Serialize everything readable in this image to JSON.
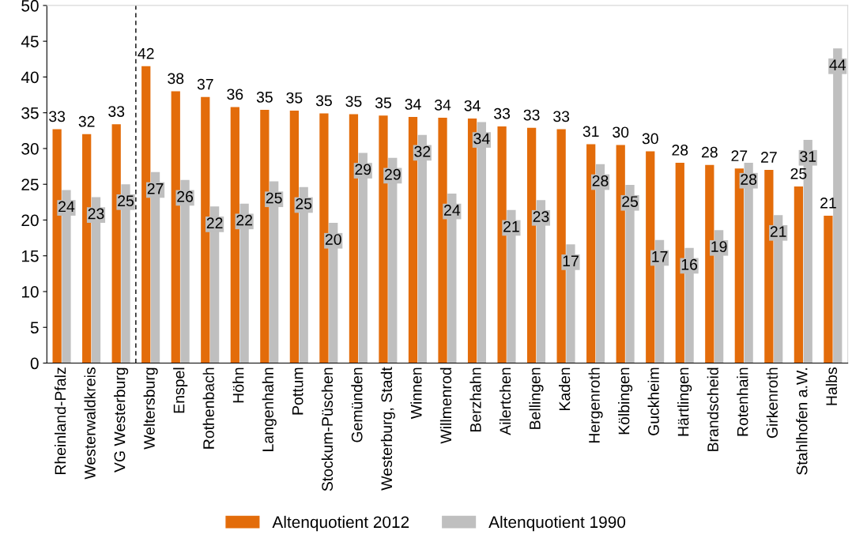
{
  "chart_data": {
    "type": "bar",
    "categories": [
      "Rheinland-Pfalz",
      "Westerwaldkreis",
      "VG Westerburg",
      "Weltersburg",
      "Enspel",
      "Rothenbach",
      "Höhn",
      "Langenhahn",
      "Pottum",
      "Stockum-Püschen",
      "Gemünden",
      "Westerburg, Stadt",
      "Winnen",
      "Willmenrod",
      "Berzhahn",
      "Ailertchen",
      "Bellingen",
      "Kaden",
      "Hergenroth",
      "Kölbingen",
      "Guckheim",
      "Härtlingen",
      "Brandscheid",
      "Rotenhain",
      "Girkenroth",
      "Stahlhofen a.W.",
      "Halbs"
    ],
    "series": [
      {
        "name": "Altenquotient 2012",
        "color": "#e36c0a",
        "values": [
          32.7,
          32.0,
          33.4,
          41.5,
          38.0,
          37.2,
          35.8,
          35.4,
          35.3,
          34.9,
          34.8,
          34.6,
          34.4,
          34.3,
          34.2,
          33.1,
          32.9,
          32.7,
          30.6,
          30.5,
          29.6,
          28.0,
          27.7,
          27.2,
          27.0,
          24.7,
          20.6
        ],
        "value_labels": [
          "33",
          "32",
          "33",
          "42",
          "38",
          "37",
          "36",
          "35",
          "35",
          "35",
          "35",
          "35",
          "34",
          "34",
          "34",
          "33",
          "33",
          "33",
          "31",
          "30",
          "30",
          "28",
          "28",
          "27",
          "27",
          "25",
          "21"
        ]
      },
      {
        "name": "Altenquotient 1990",
        "color": "#bfbfbf",
        "values": [
          24.2,
          23.2,
          25.0,
          26.7,
          25.6,
          21.9,
          22.3,
          25.4,
          24.6,
          19.6,
          29.4,
          28.7,
          31.9,
          23.7,
          33.7,
          21.4,
          22.8,
          16.6,
          27.8,
          24.9,
          17.2,
          16.1,
          18.6,
          28.0,
          20.7,
          31.2,
          44.0
        ],
        "value_labels": [
          "24",
          "23",
          "25",
          "27",
          "26",
          "22",
          "22",
          "25",
          "25",
          "20",
          "29",
          "29",
          "32",
          "24",
          "34",
          "21",
          "23",
          "17",
          "28",
          "25",
          "17",
          "16",
          "19",
          "28",
          "21",
          "31",
          "44"
        ]
      }
    ],
    "ylim": [
      0,
      50
    ],
    "yticks": [
      0,
      5,
      10,
      15,
      20,
      25,
      30,
      35,
      40,
      45,
      50
    ],
    "grid": false,
    "legend": "bottom"
  }
}
